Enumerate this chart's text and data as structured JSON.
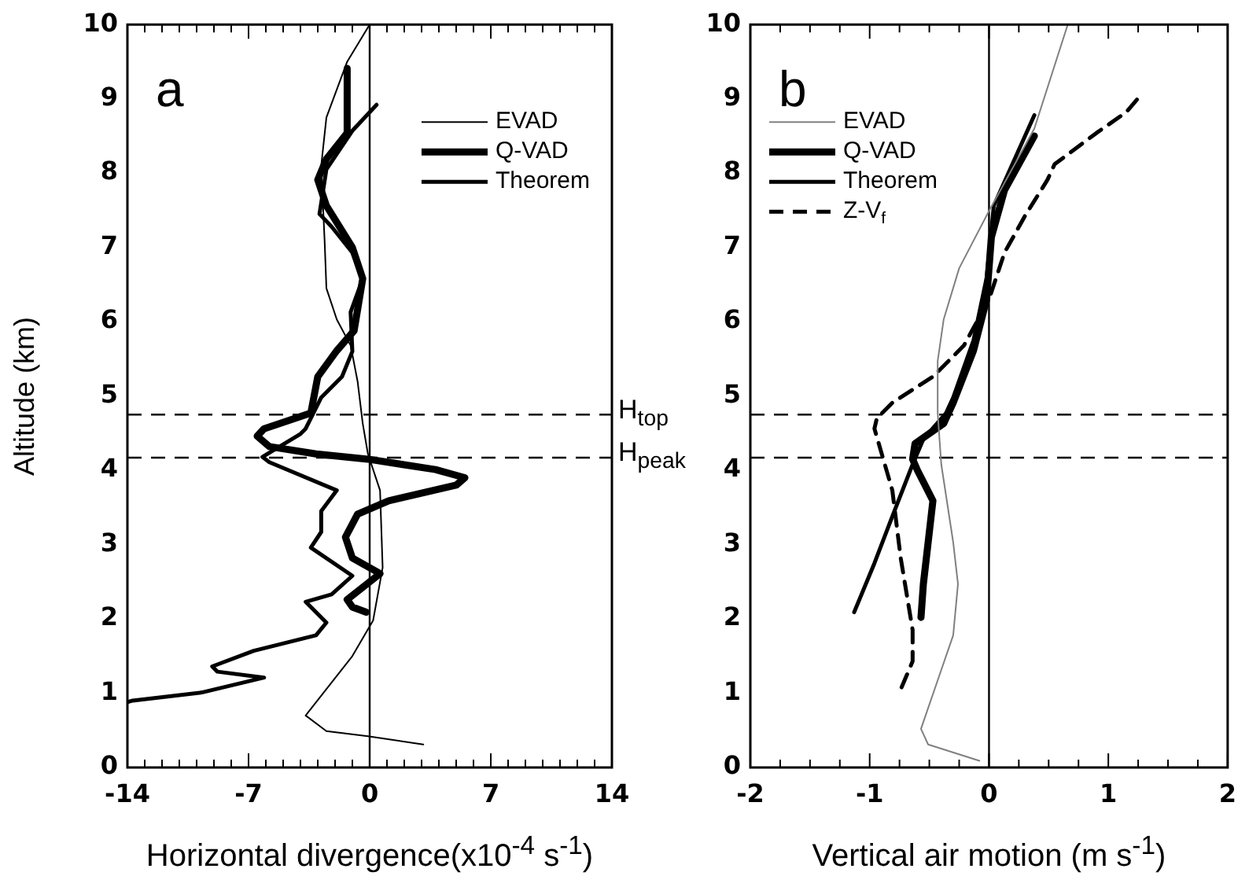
{
  "chart_data": [
    {
      "type": "line",
      "annotations": [
        "a"
      ],
      "xlabel": "Horizontal divergence(x10$^{-4}$ s$^{-1}$)",
      "ylabel": "Altitude (km)",
      "xlim": [
        -14,
        14
      ],
      "xticks": [
        -14,
        {
          "value": -13,
          "label": null
        },
        {
          "value": -12,
          "label": null
        },
        {
          "value": -11,
          "label": null
        },
        {
          "value": -10,
          "label": null
        },
        {
          "value": -9,
          "label": null
        },
        {
          "value": -8,
          "label": null
        },
        -7,
        {
          "value": -6,
          "label": null
        },
        {
          "value": -5,
          "label": null
        },
        {
          "value": -4,
          "label": null
        },
        {
          "value": -3,
          "label": null
        },
        {
          "value": -2,
          "label": null
        },
        {
          "value": -1,
          "label": null
        },
        0,
        {
          "value": 1,
          "label": null
        },
        {
          "value": 2,
          "label": null
        },
        {
          "value": 3,
          "label": null
        },
        {
          "value": 4,
          "label": null
        },
        {
          "value": 5,
          "label": null
        },
        {
          "value": 6,
          "label": null
        },
        7,
        {
          "value": 8,
          "label": null
        },
        {
          "value": 9,
          "label": null
        },
        {
          "value": 10,
          "label": null
        },
        {
          "value": 11,
          "label": null
        },
        {
          "value": 12,
          "label": null
        },
        {
          "value": 13,
          "label": null
        },
        14
      ],
      "ylim": [
        0,
        10
      ],
      "yticks": [
        0,
        1,
        2,
        3,
        4,
        5,
        6,
        7,
        8,
        9,
        10
      ],
      "grid": false,
      "legend": "top right",
      "ref_lines": [
        {
          "axis": "y",
          "value": 4.75,
          "label": "H$_{top}$",
          "line_style": "dashed",
          "color": "#000000"
        },
        {
          "axis": "y",
          "value": 4.17,
          "label": "H$_{peak}$",
          "line_style": "dashed",
          "color": "#000000"
        },
        {
          "axis": "x",
          "value": 0,
          "line_style": "solid",
          "color": "#000000"
        }
      ],
      "series": [
        {
          "name": "EVAD",
          "color": "#000000",
          "x": [
            0,
            -1.3,
            -2.5,
            -2.8,
            -2.6,
            -2.5,
            -1.9,
            -1.1,
            -0.7,
            -0.4,
            -0.1,
            0.6,
            0.75,
            0.2,
            -1.0,
            -3.7,
            -2.5,
            -0.1,
            3.1
          ],
          "values": [
            10,
            9.5,
            8.75,
            8.1,
            7.07,
            6.45,
            6.03,
            5.68,
            5.2,
            4.63,
            4.22,
            3.73,
            2.69,
            1.98,
            1.5,
            0.7,
            0.49,
            0.42,
            0.31
          ]
        },
        {
          "name": "Q-VAD",
          "color": "#000000",
          "x": [
            -1.3,
            -1.3,
            -2.5,
            -3.0,
            -2.5,
            -1.0,
            -0.4,
            -0.9,
            -1.9,
            -3.0,
            -3.4,
            -6.1,
            -6.5,
            -5.8,
            -3.1,
            -0.1,
            3.8,
            5.5,
            5.0,
            1.1,
            -0.7,
            -1.4,
            -1.0,
            0.6,
            -1.3,
            -1.0,
            -0.2
          ],
          "values": [
            9.41,
            8.54,
            8.19,
            7.91,
            7.56,
            7.0,
            6.58,
            5.88,
            5.61,
            5.26,
            4.77,
            4.56,
            4.46,
            4.32,
            4.22,
            4.15,
            4.01,
            3.9,
            3.8,
            3.59,
            3.41,
            3.1,
            2.82,
            2.61,
            2.26,
            2.16,
            2.09
          ]
        },
        {
          "name": "Theorem",
          "color": "#000000",
          "x": [
            0.4,
            -1.0,
            -2.5,
            -2.9,
            -2.2,
            -1.0,
            -0.4,
            -1.1,
            -1.0,
            -1.6,
            -2.8,
            -3.7,
            -4.0,
            -6.2,
            -5.8,
            -1.9,
            -2.8,
            -2.8,
            -3.4,
            -1.0,
            -2.2,
            -3.7,
            -2.5,
            -3.1,
            -6.7,
            -9.1,
            -8.8,
            -6.1,
            -9.7,
            -13.7,
            -14
          ],
          "values": [
            8.92,
            8.57,
            8.05,
            7.45,
            7.28,
            6.93,
            6.58,
            6.13,
            5.6,
            5.26,
            4.98,
            4.56,
            4.49,
            4.18,
            4.11,
            3.73,
            3.45,
            3.17,
            2.96,
            2.58,
            2.33,
            2.23,
            1.95,
            1.78,
            1.57,
            1.36,
            1.29,
            1.21,
            1.01,
            0.9,
            0.88
          ]
        }
      ]
    },
    {
      "type": "line",
      "annotations": [
        "b"
      ],
      "xlabel": "Vertical air motion (m s$^{-1}$)",
      "xlim": [
        -2,
        2
      ],
      "xticks": [
        -2,
        {
          "value": -1.75,
          "label": null
        },
        {
          "value": -1.5,
          "label": null
        },
        {
          "value": -1.25,
          "label": null
        },
        -1,
        {
          "value": -0.75,
          "label": null
        },
        {
          "value": -0.5,
          "label": null
        },
        {
          "value": -0.25,
          "label": null
        },
        0,
        {
          "value": 0.25,
          "label": null
        },
        {
          "value": 0.5,
          "label": null
        },
        {
          "value": 0.75,
          "label": null
        },
        1,
        {
          "value": 1.25,
          "label": null
        },
        {
          "value": 1.5,
          "label": null
        },
        {
          "value": 1.75,
          "label": null
        },
        2
      ],
      "ylim": [
        0,
        10
      ],
      "yticks": [
        0,
        1,
        2,
        3,
        4,
        5,
        6,
        7,
        8,
        9,
        10
      ],
      "grid": false,
      "legend": "top left",
      "ref_lines": [
        {
          "axis": "y",
          "value": 4.75,
          "line_style": "dashed",
          "color": "#000000"
        },
        {
          "axis": "y",
          "value": 4.17,
          "line_style": "dashed",
          "color": "#000000"
        },
        {
          "axis": "x",
          "value": 0,
          "line_style": "solid",
          "color": "#000000"
        }
      ],
      "series": [
        {
          "name": "EVAD",
          "color": "#808080",
          "x": [
            0.66,
            0.38,
            0,
            -0.25,
            -0.38,
            -0.43,
            -0.43,
            -0.4,
            -0.3,
            -0.26,
            -0.3,
            -0.42,
            -0.57,
            -0.51,
            -0.08
          ],
          "values": [
            10,
            8.6,
            7.49,
            6.72,
            6.03,
            5.47,
            4.77,
            4.08,
            3.03,
            2.47,
            1.78,
            1.22,
            0.52,
            0.31,
            0.09
          ]
        },
        {
          "name": "Q-VAD",
          "color": "#000000",
          "x": [
            0.38,
            0.13,
            0.02,
            -0.02,
            -0.13,
            -0.3,
            -0.38,
            -0.62,
            -0.64,
            -0.6,
            -0.47,
            -0.51,
            -0.55,
            -0.57
          ],
          "values": [
            8.5,
            7.77,
            7.14,
            6.3,
            5.61,
            4.91,
            4.63,
            4.36,
            4.15,
            4.0,
            3.59,
            3.03,
            2.47,
            2.02
          ]
        },
        {
          "name": "Theorem",
          "color": "#000000",
          "x": [
            0.38,
            0.04,
            -0.02,
            -0.13,
            -0.3,
            -0.36,
            -0.55,
            -0.64,
            -0.81,
            -0.96,
            -1.13
          ],
          "values": [
            8.78,
            7.56,
            6.59,
            5.75,
            4.98,
            4.77,
            4.42,
            4.08,
            3.38,
            2.75,
            2.09
          ]
        },
        {
          "name": "Z-V$_{f}$",
          "color": "#000000",
          "line_style": "dashed",
          "x": [
            1.24,
            1.15,
            0.9,
            0.55,
            0.49,
            0.3,
            0.13,
            0,
            -0.21,
            -0.47,
            -0.81,
            -0.94,
            -0.96,
            -0.81,
            -0.74,
            -0.64,
            -0.64,
            -0.74
          ],
          "values": [
            8.99,
            8.82,
            8.54,
            8.12,
            7.91,
            7.42,
            6.93,
            6.3,
            5.68,
            5.26,
            4.91,
            4.7,
            4.56,
            3.73,
            2.82,
            1.85,
            1.43,
            1.05
          ]
        }
      ]
    }
  ]
}
